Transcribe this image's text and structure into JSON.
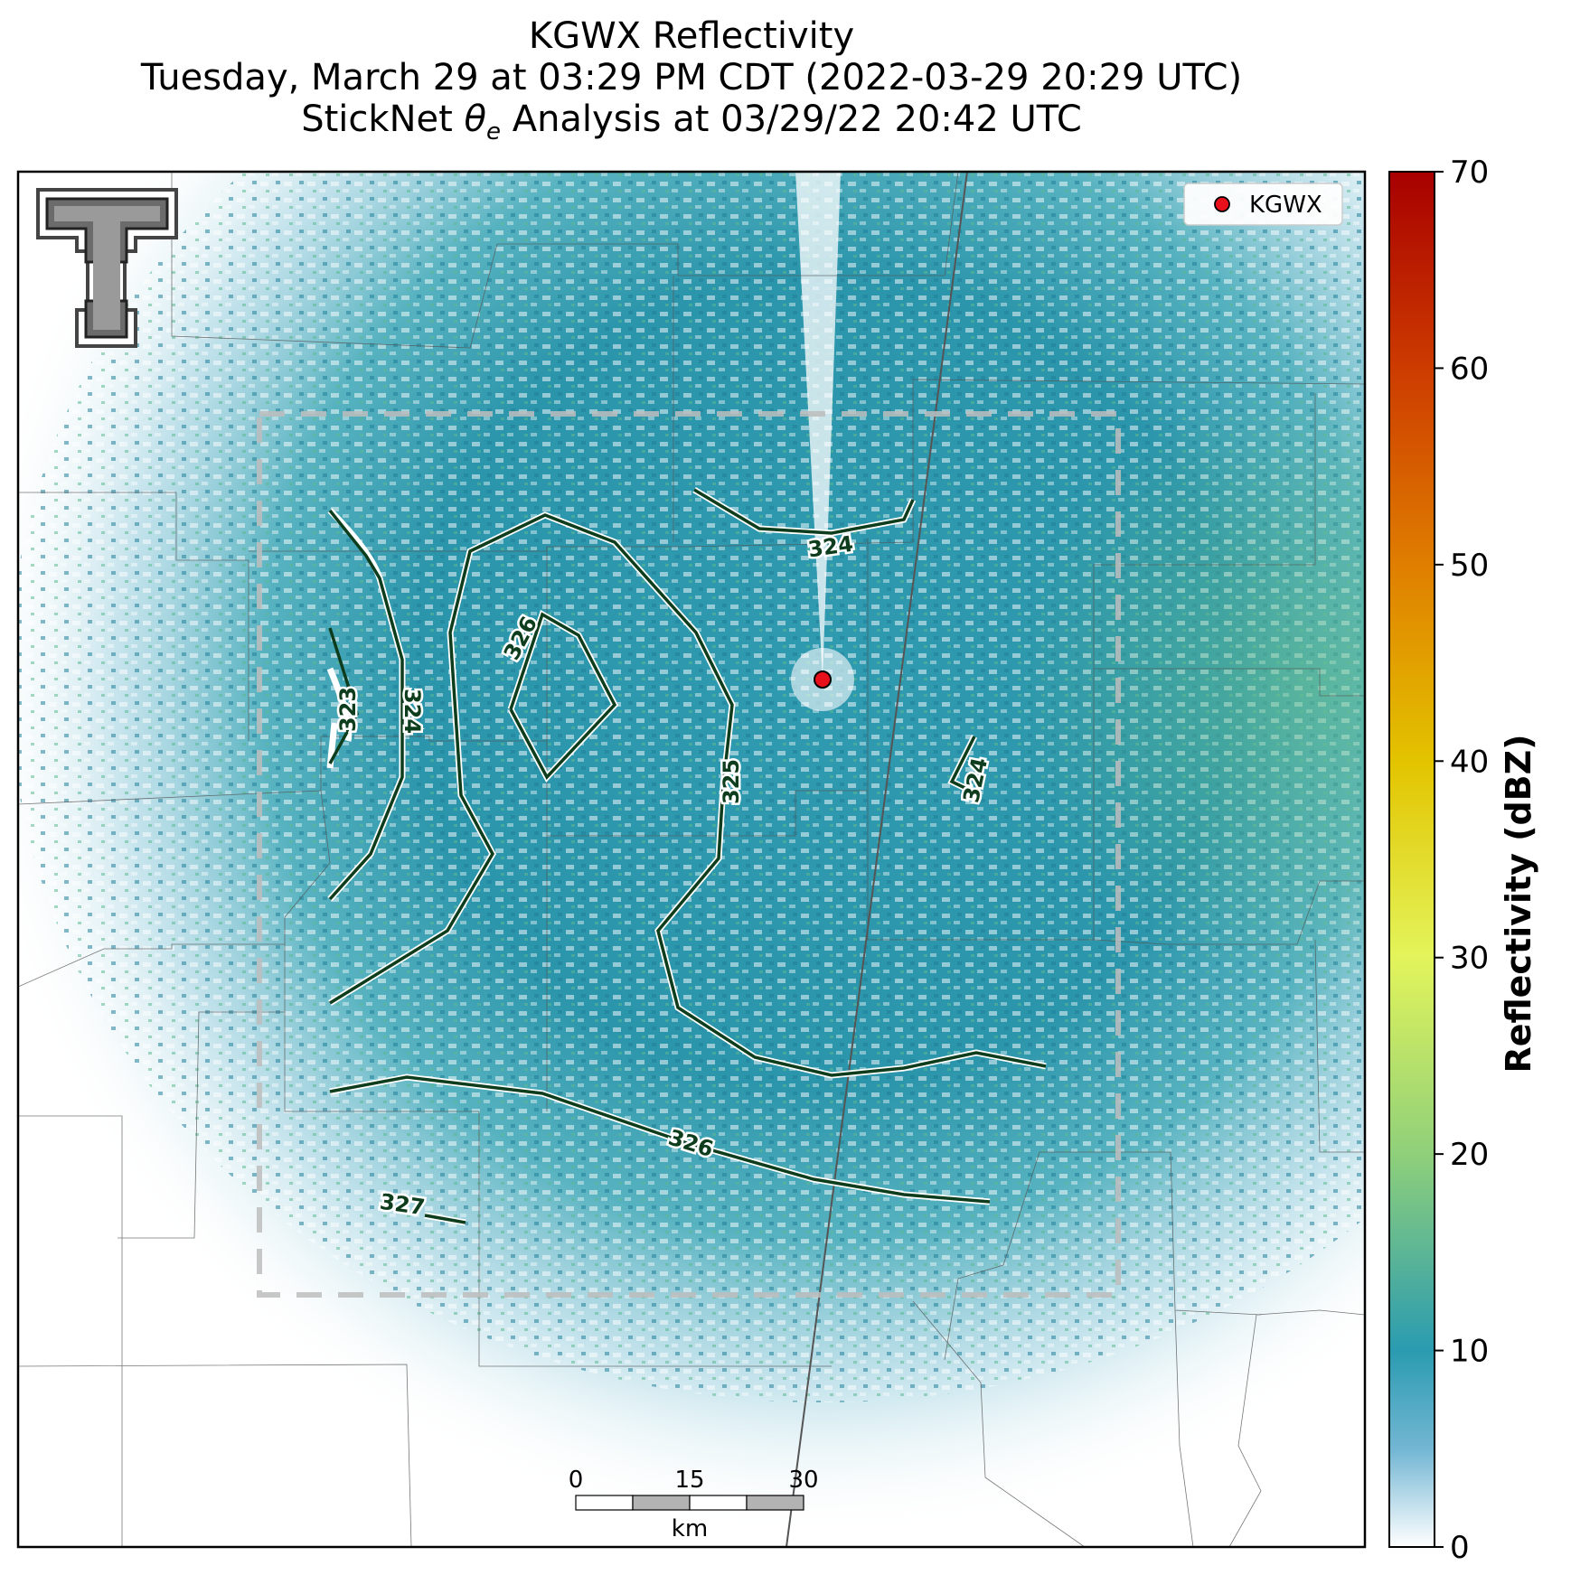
{
  "title": {
    "line1": "KGWX Reflectivity",
    "line2": "Tuesday, March 29 at 03:29 PM CDT (2022-03-29 20:29 UTC)",
    "line3_prefix": "StickNet ",
    "line3_theta": "θ",
    "line3_sub": "e",
    "line3_suffix": " Analysis at 03/29/22 20:42 UTC"
  },
  "legend": {
    "label": "KGWX",
    "marker_color": "#e8101a"
  },
  "radar_site": {
    "name": "KGWX"
  },
  "colorbar": {
    "title": "Reflectivity (dBZ)",
    "ticks": [
      "0",
      "10",
      "20",
      "30",
      "40",
      "50",
      "60",
      "70"
    ],
    "colors": [
      "#ffffff",
      "#2a9bb0",
      "#4db3a6",
      "#8fd07a",
      "#e0f05a",
      "#e5c000",
      "#e07a00",
      "#c42b00",
      "#a80000"
    ]
  },
  "contours": [
    {
      "label": "323"
    },
    {
      "label": "324"
    },
    {
      "label": "324"
    },
    {
      "label": "324"
    },
    {
      "label": "325"
    },
    {
      "label": "326"
    },
    {
      "label": "326"
    },
    {
      "label": "327"
    }
  ],
  "scale_bar": {
    "ticks": [
      "0",
      "15",
      "30"
    ],
    "unit": "km"
  },
  "logo": {
    "name": "Texas Tech Double T"
  }
}
